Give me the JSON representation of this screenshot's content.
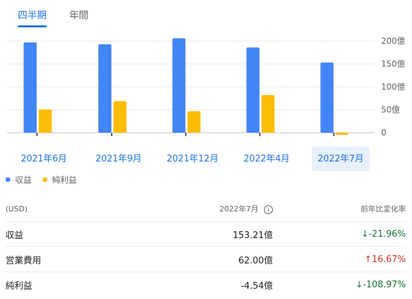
{
  "tabs": [
    {
      "label": "四半期",
      "active": true
    },
    {
      "label": "年間",
      "active": false
    }
  ],
  "colors": {
    "revenue": "#4285f4",
    "net_income": "#fbbc04",
    "accent": "#1a73e8",
    "positive": "#137333",
    "negative": "#d93025"
  },
  "chart_data": {
    "type": "bar",
    "categories": [
      "2021年6月",
      "2021年9月",
      "2021年12月",
      "2022年4月",
      "2022年7月"
    ],
    "selected_category": "2022年7月",
    "series": [
      {
        "name": "収益",
        "values": [
          197,
          193,
          206,
          186,
          153.21
        ]
      },
      {
        "name": "純利益",
        "values": [
          51,
          69,
          47,
          82,
          -4.54
        ]
      }
    ],
    "y_ticks": [
      "0",
      "50億",
      "100億",
      "150億",
      "200億"
    ],
    "y_tick_values": [
      0,
      50,
      100,
      150,
      200
    ],
    "ylim": [
      -10,
      200
    ],
    "grid": true
  },
  "legend": [
    {
      "label": "収益",
      "color": "#4285f4"
    },
    {
      "label": "純利益",
      "color": "#fbbc04"
    }
  ],
  "table": {
    "header": {
      "label": "(USD)",
      "period": "2022年7月",
      "change": "前年比変化率"
    },
    "rows": [
      {
        "label": "収益",
        "value": "153.21億",
        "change": "-21.96%",
        "arrow": "↓",
        "direction": "down"
      },
      {
        "label": "営業費用",
        "value": "62.00億",
        "change": "16.67%",
        "arrow": "↑",
        "direction": "up"
      },
      {
        "label": "純利益",
        "value": "-4.54億",
        "change": "-108.97%",
        "arrow": "↓",
        "direction": "down"
      }
    ]
  }
}
